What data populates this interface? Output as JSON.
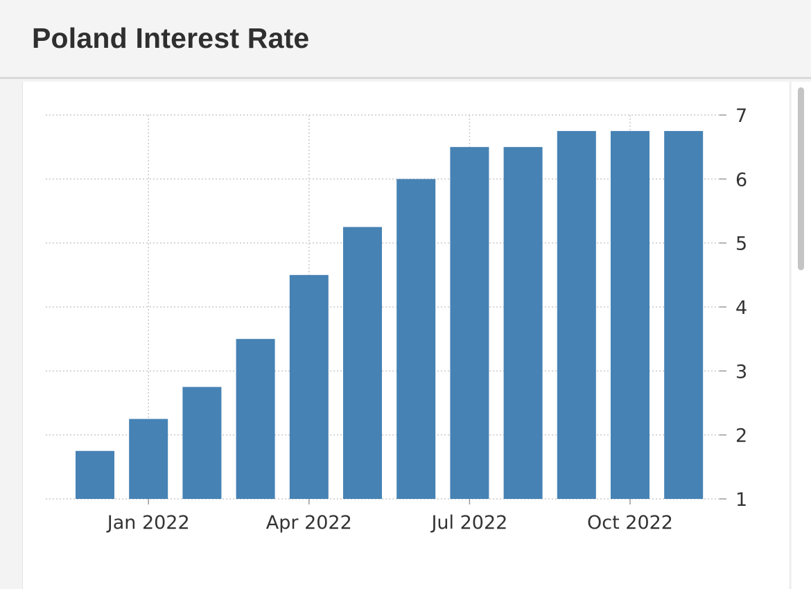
{
  "header": {
    "title": "Poland Interest Rate"
  },
  "chart_data": {
    "type": "bar",
    "title": "Poland Interest Rate",
    "x": [
      "2021-12",
      "2022-01",
      "2022-02",
      "2022-03",
      "2022-04",
      "2022-05",
      "2022-06",
      "2022-07",
      "2022-08",
      "2022-09",
      "2022-10",
      "2022-11"
    ],
    "values": [
      1.75,
      2.25,
      2.75,
      3.5,
      4.5,
      5.25,
      6.0,
      6.5,
      6.5,
      6.75,
      6.75,
      6.75
    ],
    "x_tick_labels": [
      "Jan 2022",
      "Apr 2022",
      "Jul 2022",
      "Oct 2022"
    ],
    "x_tick_positions": [
      "2022-01",
      "2022-04",
      "2022-07",
      "2022-10"
    ],
    "y_ticks": [
      1,
      2,
      3,
      4,
      5,
      6,
      7
    ],
    "ylim": [
      1,
      7
    ],
    "y_axis_side": "right",
    "grid": true,
    "bar_color": "#4682b4"
  }
}
